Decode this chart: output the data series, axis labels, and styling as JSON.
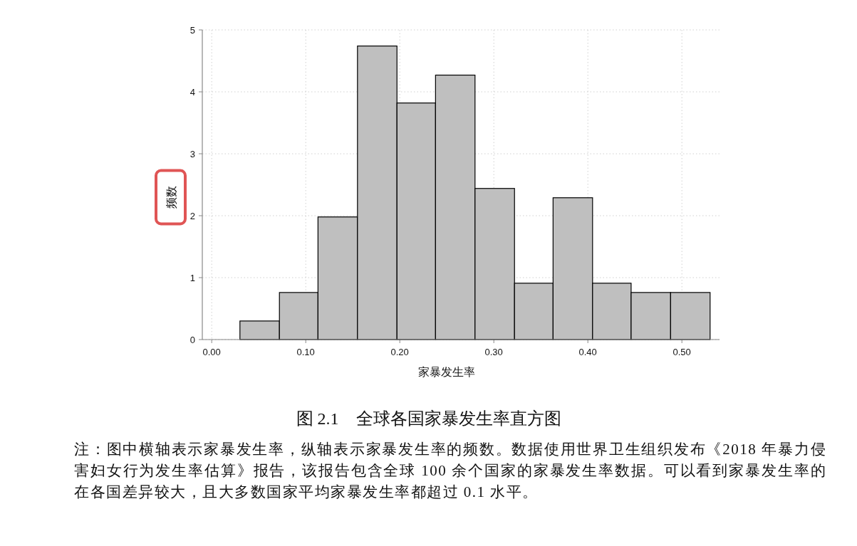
{
  "chart_data": {
    "type": "histogram",
    "title": "图 2.1　全球各国家暴发生率直方图",
    "xlabel": "家暴发生率",
    "ylabel": "频数",
    "bins": [
      0.03,
      0.072,
      0.113,
      0.155,
      0.197,
      0.238,
      0.28,
      0.322,
      0.363,
      0.405,
      0.446,
      0.488,
      0.53
    ],
    "values": [
      0.3,
      0.76,
      1.98,
      4.74,
      3.82,
      4.27,
      2.44,
      0.91,
      2.29,
      0.91,
      0.76,
      0.76
    ],
    "color": "#bfbfbf",
    "xlim": [
      -0.01,
      0.54
    ],
    "ylim": [
      0,
      5
    ],
    "xticks": [
      {
        "value": 0,
        "label": "0.00"
      },
      {
        "value": 0.1,
        "label": "0.10"
      },
      {
        "value": 0.2,
        "label": "0.20"
      },
      {
        "value": 0.3,
        "label": "0.30"
      },
      {
        "value": 0.4,
        "label": "0.40"
      },
      {
        "value": 0.5,
        "label": "0.50"
      }
    ],
    "yticks": [
      0,
      1,
      2,
      3,
      4,
      5
    ],
    "grid": true,
    "annotations": [
      "注：图中横轴表示家暴发生率，纵轴表示家暴发生率的频数。数据使用世界卫生组织发布《2018 年暴力侵害妇女行为发生率估算》报告，该报告包含全球 100 余个国家的家暴发生率数据。可以看到家暴发生率的在各国差异较大，且大多数国家平均家暴发生率都超过 0.1 水平。"
    ]
  }
}
